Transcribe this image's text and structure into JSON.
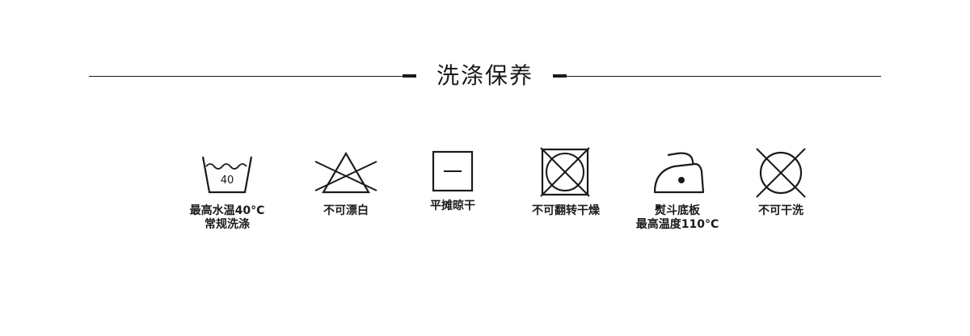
{
  "header": {
    "title": "洗涤保养"
  },
  "care_items": [
    {
      "icon": "wash-40-icon",
      "temp_label": "40",
      "line1": "最高水温40°C",
      "line2": "常规洗涤"
    },
    {
      "icon": "no-bleach-icon",
      "line1": "不可漂白"
    },
    {
      "icon": "dry-flat-icon",
      "line1": "平摊晾干"
    },
    {
      "icon": "no-tumble-dry-icon",
      "line1": "不可翻转干燥"
    },
    {
      "icon": "iron-low-icon",
      "line1": "熨斗底板",
      "line2": "最高温度110°C"
    },
    {
      "icon": "no-dry-clean-icon",
      "line1": "不可干洗"
    }
  ],
  "colors": {
    "ink": "#1a1a1a",
    "background": "#ffffff"
  }
}
